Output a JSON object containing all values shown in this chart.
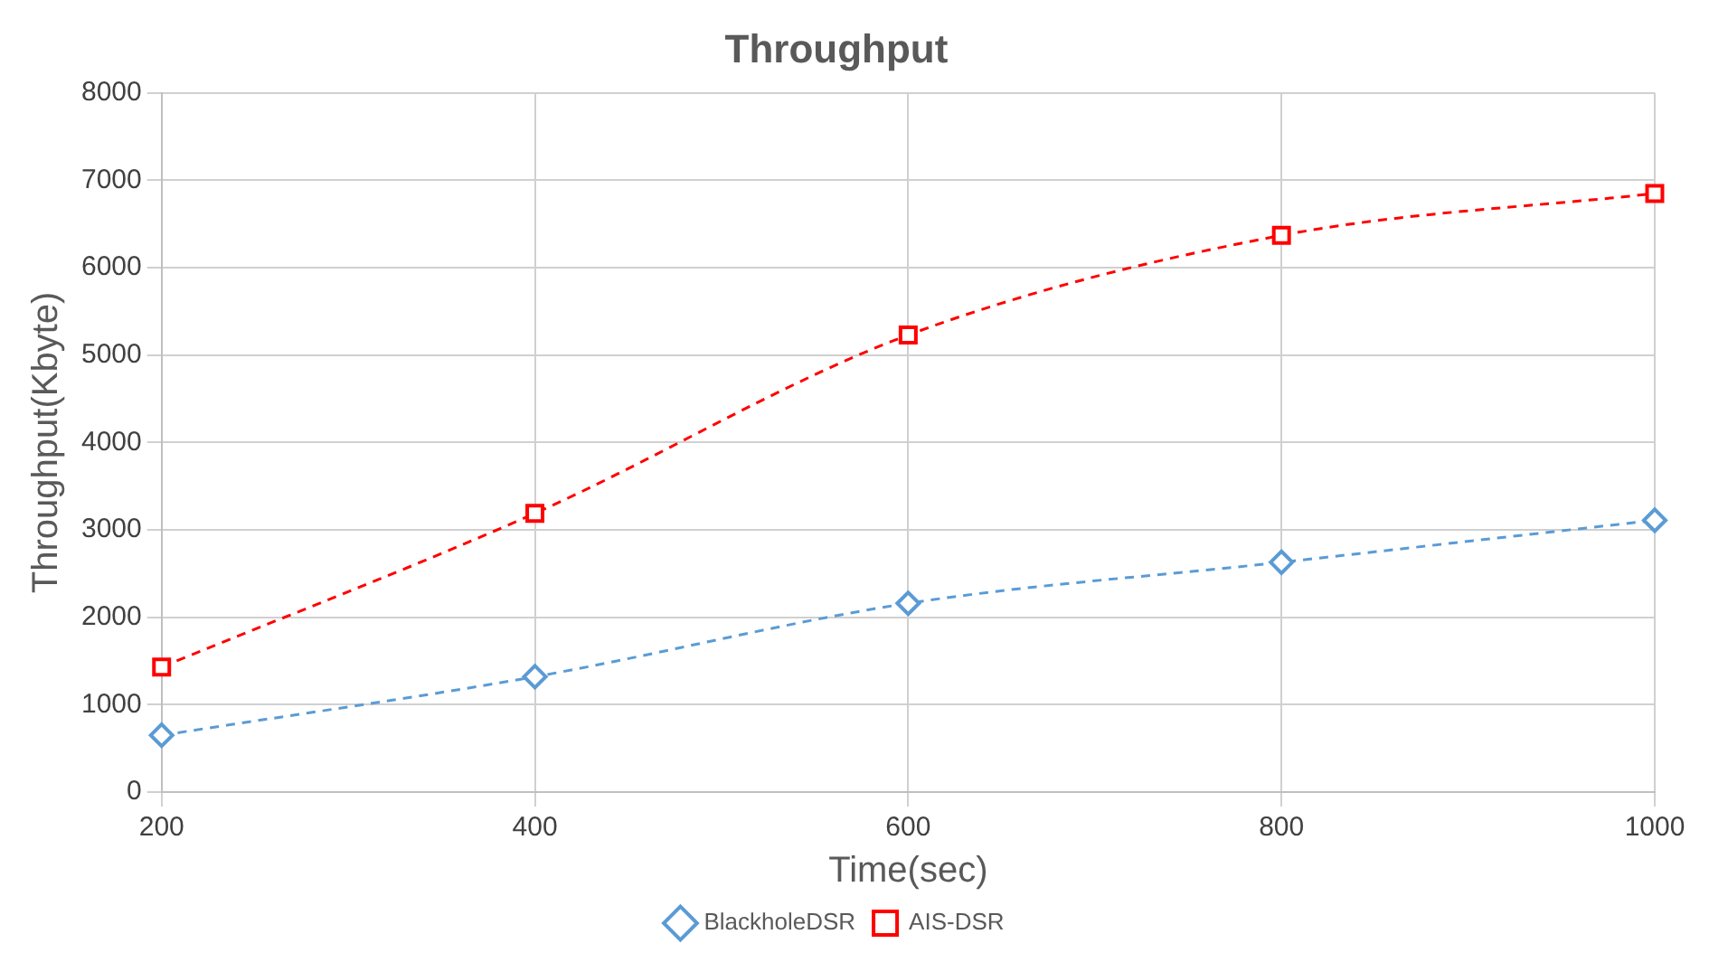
{
  "chart_data": {
    "type": "line",
    "title": "Throughput",
    "xlabel": "Time(sec)",
    "ylabel": "Throughput(Kbyte)",
    "x": [
      200,
      400,
      600,
      800,
      1000
    ],
    "series": [
      {
        "name": "BlackholeDSR",
        "color": "#5b9bd5",
        "marker": "diamond",
        "values": [
          650,
          1320,
          2160,
          2630,
          3110
        ]
      },
      {
        "name": "AIS-DSR",
        "color": "#ff0000",
        "marker": "square",
        "values": [
          1430,
          3190,
          5230,
          6370,
          6850
        ]
      }
    ],
    "xlim": [
      200,
      1000
    ],
    "xticks": [
      200,
      400,
      600,
      800,
      1000
    ],
    "ylim": [
      0,
      8000
    ],
    "yticks": [
      0,
      1000,
      2000,
      3000,
      4000,
      5000,
      6000,
      7000,
      8000
    ],
    "grid": true,
    "legend": "bottom",
    "line_style": "dashed"
  }
}
